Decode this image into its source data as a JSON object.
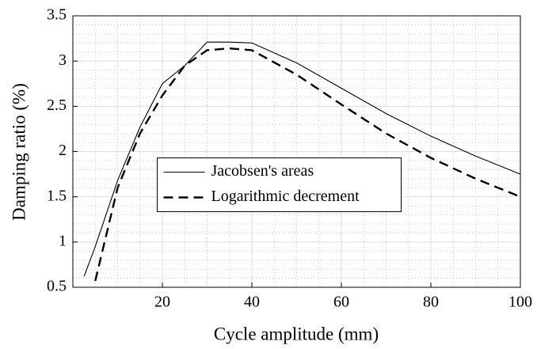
{
  "chart_data": {
    "type": "line",
    "xlabel": "Cycle amplitude (mm)",
    "ylabel": "Damping ratio (%)",
    "x": [
      2.5,
      5,
      10,
      15,
      20,
      25,
      30,
      35,
      40,
      50,
      60,
      70,
      80,
      90,
      100
    ],
    "series": [
      {
        "name": "Jacobsen's areas",
        "color": "#000000",
        "dash": "solid",
        "values": [
          0.62,
          0.95,
          1.68,
          2.27,
          2.75,
          2.95,
          3.21,
          3.21,
          3.2,
          2.98,
          2.7,
          2.42,
          2.17,
          1.95,
          1.75
        ]
      },
      {
        "name": "Logarithmic decrement",
        "color": "#000000",
        "dash": "dashed",
        "values": [
          null,
          0.57,
          1.6,
          2.2,
          2.62,
          2.95,
          3.12,
          3.14,
          3.12,
          2.85,
          2.52,
          2.2,
          1.93,
          1.7,
          1.5
        ]
      }
    ],
    "xlim": [
      0,
      100
    ],
    "xticks": [
      20,
      40,
      60,
      80,
      100
    ],
    "ylim": [
      0.5,
      3.5
    ],
    "yticks": [
      0.5,
      1,
      1.5,
      2,
      2.5,
      3,
      3.5
    ],
    "grid": true,
    "minor_grid": true,
    "legend": "center"
  }
}
